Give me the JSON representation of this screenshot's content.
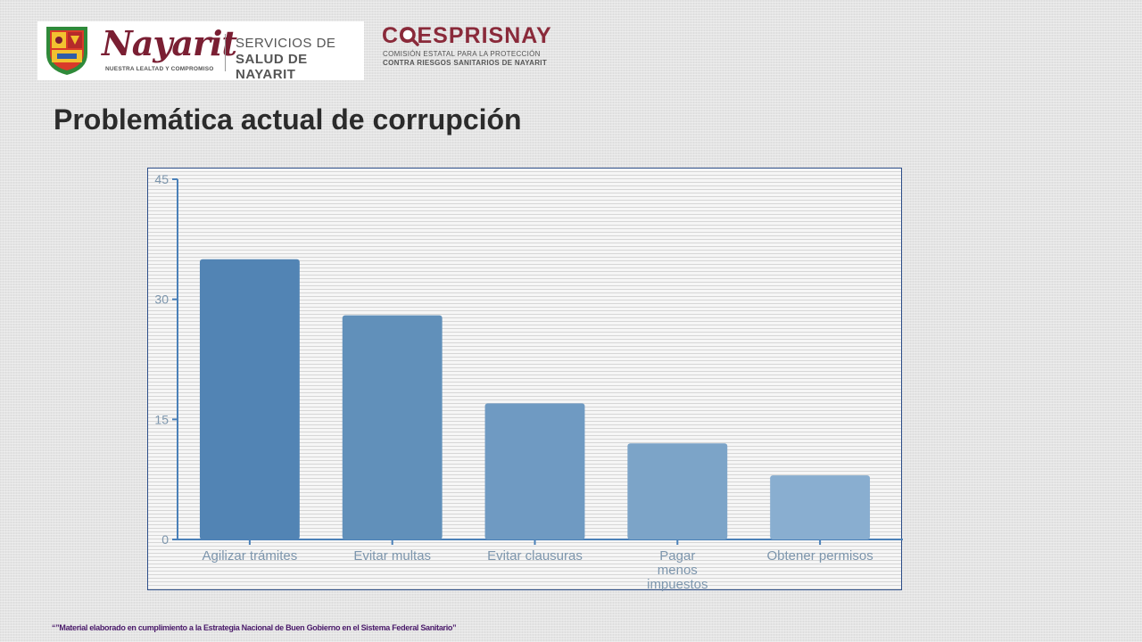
{
  "header": {
    "nayarit_wordmark": "Nayarit",
    "nayarit_tagline": "NUESTRA LEALTAD Y COMPROMISO",
    "ssn_line1": "SERVICIOS DE",
    "ssn_line2": "SALUD DE NAYARIT",
    "coesprisnay_name": "COESPRISNAY",
    "coesprisnay_sub1": "COMISIÓN ESTATAL PARA LA PROTECCIÓN",
    "coesprisnay_sub2": "CONTRA RIESGOS SANITARIOS DE NAYARIT",
    "brand_color": "#7a1f33"
  },
  "title": "Problemática actual de corrupción",
  "chart_data": {
    "type": "bar",
    "title": "",
    "xlabel": "",
    "ylabel": "",
    "ylim": [
      0,
      45
    ],
    "yticks": [
      0,
      15,
      30,
      45
    ],
    "grid": false,
    "categories": [
      "Agilizar trámites",
      "Evitar multas",
      "Evitar clausuras",
      "Pagar menos impuestos",
      "Obtener permisos"
    ],
    "category_label_lines": [
      [
        "Agilizar trámites"
      ],
      [
        "Evitar multas"
      ],
      [
        "Evitar clausuras"
      ],
      [
        "Pagar",
        "menos",
        "impuestos"
      ],
      [
        "Obtener permisos"
      ]
    ],
    "values": [
      35,
      28,
      17,
      12,
      8
    ],
    "bar_colors": [
      "#5284b4",
      "#6190ba",
      "#6f9ac2",
      "#7ca4c8",
      "#89aed0"
    ],
    "axis_color": "#4a80b8",
    "label_color": "#7d96ad"
  },
  "footer": {
    "note": "“”Material elaborado en cumplimiento a la Estrategia Nacional de Buen Gobierno en el Sistema Federal Sanitario”"
  }
}
